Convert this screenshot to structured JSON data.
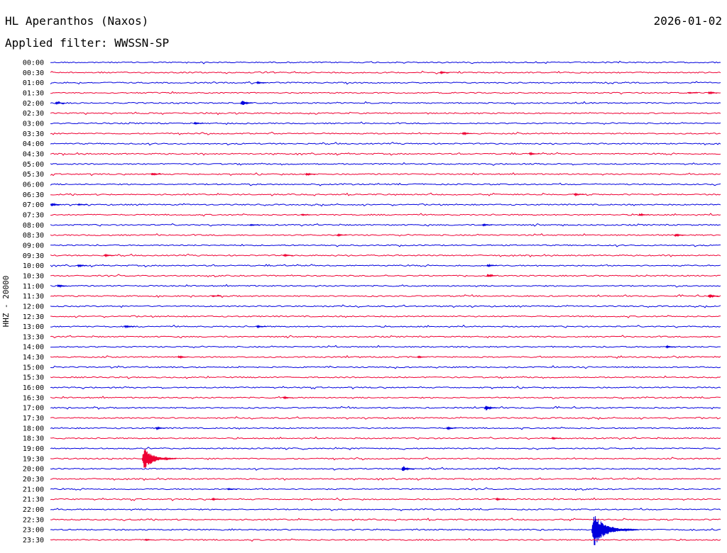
{
  "header": {
    "station": "HL Aperanthos (Naxos)",
    "date": "2026-01-02",
    "filter_label": "Applied filter: WWSSN-SP"
  },
  "colors": {
    "blue": "#0000dd",
    "red": "#ee0033"
  },
  "chart_data": {
    "type": "line",
    "ylabel": "HHZ - 20000",
    "x_range": [
      0,
      30
    ],
    "x_unit": "minutes",
    "series_colors": [
      "#0000dd",
      "#ee0033"
    ],
    "rows": [
      {
        "time": "00:00",
        "events": []
      },
      {
        "time": "00:30",
        "events": [
          {
            "t": 17.5,
            "amp": 3
          }
        ]
      },
      {
        "time": "01:00",
        "events": [
          {
            "t": 9.3,
            "amp": 3
          }
        ]
      },
      {
        "time": "01:30",
        "events": [
          {
            "t": 29.5,
            "amp": 4
          },
          {
            "t": 28.6,
            "amp": 2
          }
        ]
      },
      {
        "time": "02:00",
        "events": [
          {
            "t": 8.6,
            "amp": 8
          },
          {
            "t": 0.3,
            "amp": 3
          }
        ]
      },
      {
        "time": "02:30",
        "events": []
      },
      {
        "time": "03:00",
        "events": [
          {
            "t": 6.5,
            "amp": 3
          }
        ]
      },
      {
        "time": "03:30",
        "events": [
          {
            "t": 18.5,
            "amp": 4
          }
        ]
      },
      {
        "time": "04:00",
        "events": []
      },
      {
        "time": "04:30",
        "events": [
          {
            "t": 21.5,
            "amp": 3
          }
        ]
      },
      {
        "time": "05:00",
        "events": []
      },
      {
        "time": "05:30",
        "events": [
          {
            "t": 4.6,
            "amp": 5
          },
          {
            "t": 11.5,
            "amp": 5
          }
        ]
      },
      {
        "time": "06:00",
        "events": []
      },
      {
        "time": "06:30",
        "events": [
          {
            "t": 23.5,
            "amp": 3
          }
        ]
      },
      {
        "time": "07:00",
        "events": [
          {
            "t": 0.1,
            "amp": 6
          },
          {
            "t": 1.3,
            "amp": 2
          }
        ]
      },
      {
        "time": "07:30",
        "events": [
          {
            "t": 26.4,
            "amp": 4
          },
          {
            "t": 11.3,
            "amp": 2
          }
        ]
      },
      {
        "time": "08:00",
        "events": [
          {
            "t": 19.4,
            "amp": 3
          },
          {
            "t": 9.0,
            "amp": 2
          }
        ]
      },
      {
        "time": "08:30",
        "events": [
          {
            "t": 28.0,
            "amp": 5
          },
          {
            "t": 12.9,
            "amp": 3
          }
        ]
      },
      {
        "time": "09:00",
        "events": []
      },
      {
        "time": "09:30",
        "events": [
          {
            "t": 2.5,
            "amp": 3
          },
          {
            "t": 10.5,
            "amp": 3
          }
        ]
      },
      {
        "time": "10:00",
        "events": [
          {
            "t": 1.3,
            "amp": 4
          },
          {
            "t": 19.6,
            "amp": 4
          }
        ]
      },
      {
        "time": "10:30",
        "events": [
          {
            "t": 19.6,
            "amp": 6
          }
        ]
      },
      {
        "time": "11:00",
        "events": [
          {
            "t": 0.4,
            "amp": 5
          }
        ]
      },
      {
        "time": "11:30",
        "events": [
          {
            "t": 29.5,
            "amp": 7
          },
          {
            "t": 7.3,
            "amp": 2
          }
        ]
      },
      {
        "time": "12:00",
        "events": []
      },
      {
        "time": "12:30",
        "events": []
      },
      {
        "time": "13:00",
        "events": [
          {
            "t": 3.4,
            "amp": 4
          },
          {
            "t": 9.3,
            "amp": 3
          }
        ]
      },
      {
        "time": "13:30",
        "events": []
      },
      {
        "time": "14:00",
        "events": [
          {
            "t": 27.6,
            "amp": 3
          }
        ]
      },
      {
        "time": "14:30",
        "events": [
          {
            "t": 5.8,
            "amp": 4
          },
          {
            "t": 16.5,
            "amp": 3
          }
        ]
      },
      {
        "time": "15:00",
        "events": []
      },
      {
        "time": "15:30",
        "events": []
      },
      {
        "time": "16:00",
        "events": []
      },
      {
        "time": "16:30",
        "events": [
          {
            "t": 10.5,
            "amp": 3
          }
        ]
      },
      {
        "time": "17:00",
        "events": [
          {
            "t": 19.5,
            "amp": 8
          }
        ]
      },
      {
        "time": "17:30",
        "events": []
      },
      {
        "time": "18:00",
        "events": [
          {
            "t": 17.8,
            "amp": 4
          },
          {
            "t": 4.8,
            "amp": 4
          }
        ]
      },
      {
        "time": "18:30",
        "events": [
          {
            "t": 22.5,
            "amp": 3
          }
        ]
      },
      {
        "time": "19:00",
        "events": []
      },
      {
        "time": "19:30",
        "events": [
          {
            "t": 4.2,
            "amp": 22
          }
        ]
      },
      {
        "time": "20:00",
        "events": [
          {
            "t": 15.8,
            "amp": 8
          }
        ]
      },
      {
        "time": "20:30",
        "events": []
      },
      {
        "time": "21:00",
        "events": [
          {
            "t": 8.0,
            "amp": 2
          }
        ]
      },
      {
        "time": "21:30",
        "events": [
          {
            "t": 7.3,
            "amp": 3
          },
          {
            "t": 20.0,
            "amp": 3
          }
        ]
      },
      {
        "time": "22:00",
        "events": []
      },
      {
        "time": "22:30",
        "events": []
      },
      {
        "time": "23:00",
        "events": [
          {
            "t": 24.3,
            "amp": 30
          }
        ]
      },
      {
        "time": "23:30",
        "events": [
          {
            "t": 4.3,
            "amp": 2
          }
        ]
      }
    ]
  }
}
